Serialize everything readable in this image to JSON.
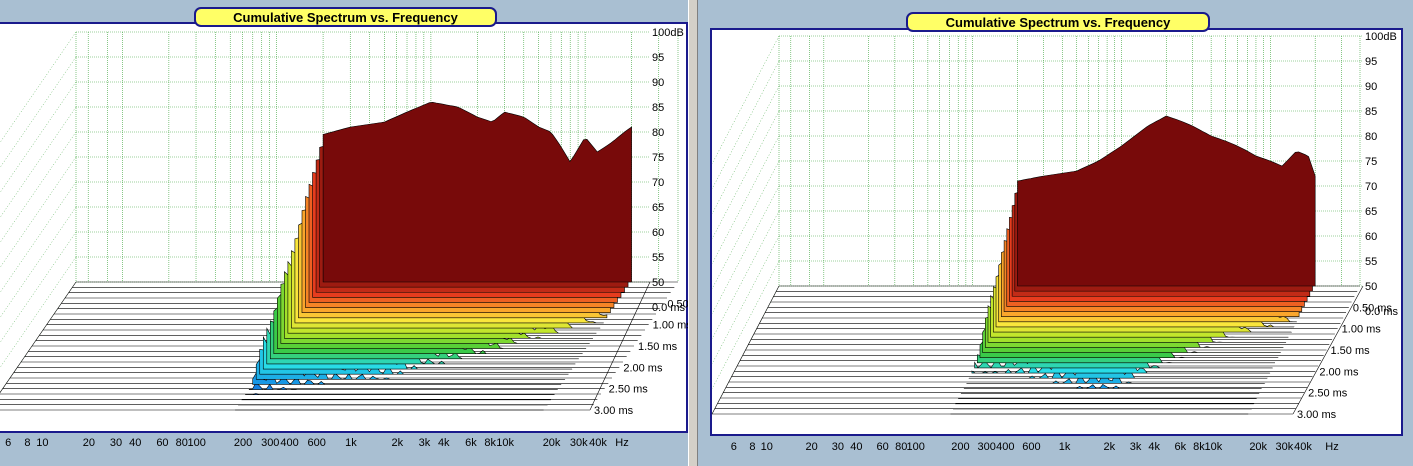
{
  "panels": [
    {
      "title": "Cumulative Spectrum vs. Frequency",
      "chart_data": {
        "type": "area",
        "variant": "cumulative-spectral-decay-waterfall",
        "title": "Cumulative Spectrum vs. Frequency",
        "x_scale": "log",
        "x_unit": "Hz",
        "x_tick_labels": [
          "6",
          "8",
          "10",
          "20",
          "30",
          "40",
          "60",
          "80",
          "100",
          "200",
          "300",
          "400",
          "600",
          "1k",
          "2k",
          "3k",
          "4k",
          "6k",
          "8k",
          "10k",
          "20k",
          "30k",
          "40k"
        ],
        "y_unit": "dB",
        "y_tick_labels": [
          "100dB",
          "95",
          "90",
          "85",
          "80",
          "75",
          "70",
          "65",
          "60",
          "55",
          "50",
          "0.0 ms"
        ],
        "ylim": [
          50,
          100
        ],
        "z_tick_labels": [
          "0.50 ms",
          "1.00 ms",
          "1.50 ms",
          "2.00 ms",
          "2.50 ms",
          "3.00 ms"
        ],
        "z_label_first": "0.0 ms",
        "zlim_ms": [
          0,
          3.0
        ],
        "grid": true,
        "series": [
          {
            "time_ms": 0.0,
            "freqs_hz": [
              200,
              300,
              500,
              700,
              1000,
              1500,
              2000,
              2500,
              3000,
              4000,
              5000,
              6000,
              7000,
              8000,
              10000,
              12000,
              15000,
              18000,
              20000
            ],
            "levels_db": [
              79.5,
              81,
              82,
              84,
              86,
              85,
              83,
              82,
              84,
              83,
              81,
              80,
              77,
              74,
              79,
              76,
              78,
              80,
              81
            ]
          },
          {
            "time_ms": 0.6,
            "freqs_hz": [
              200,
              300,
              500,
              700,
              1000,
              1500,
              2000,
              2500,
              3000,
              4000,
              5000,
              6000,
              7000,
              8000,
              10000,
              12000,
              15000,
              18000,
              20000
            ],
            "levels_db": [
              72,
              71,
              70,
              69,
              69,
              68,
              68,
              67,
              66,
              66,
              65,
              64,
              62,
              60,
              62,
              60,
              58,
              56,
              55
            ]
          },
          {
            "time_ms": 1.2,
            "freqs_hz": [
              200,
              300,
              500,
              700,
              1000,
              1500,
              2000,
              2500,
              3000,
              4000,
              5000,
              6000,
              7000,
              8000,
              10000,
              12000,
              15000,
              18000,
              20000
            ],
            "levels_db": [
              64,
              63,
              62,
              61,
              61,
              60,
              58,
              57,
              57,
              56,
              56,
              55,
              54,
              53,
              54,
              52,
              51,
              50,
              50
            ]
          }
        ]
      },
      "x_axis_labels": [
        "6",
        "8",
        "10",
        "20",
        "30",
        "40",
        "60",
        "80",
        "100",
        "200",
        "300",
        "400",
        "600",
        "1k",
        "2k",
        "3k",
        "4k",
        "6k",
        "8k",
        "10k",
        "20k",
        "30k",
        "40k",
        "Hz"
      ]
    },
    {
      "title": "Cumulative Spectrum vs. Frequency",
      "chart_data": {
        "type": "area",
        "variant": "cumulative-spectral-decay-waterfall",
        "title": "Cumulative Spectrum vs. Frequency",
        "x_scale": "log",
        "x_unit": "Hz",
        "x_tick_labels": [
          "6",
          "8",
          "10",
          "20",
          "30",
          "40",
          "60",
          "80",
          "100",
          "200",
          "300",
          "400",
          "600",
          "1k",
          "2k",
          "3k",
          "4k",
          "6k",
          "8k",
          "10k",
          "20k",
          "30k",
          "40k"
        ],
        "y_unit": "dB",
        "y_tick_labels": [
          "100dB",
          "95",
          "90",
          "85",
          "80",
          "75",
          "70",
          "65",
          "60",
          "55",
          "50",
          "0.0 ms"
        ],
        "ylim": [
          50,
          100
        ],
        "z_tick_labels": [
          "0.50 ms",
          "1.00 ms",
          "1.50 ms",
          "2.00 ms",
          "2.50 ms",
          "3.00 ms"
        ],
        "z_label_first": "0.0 ms",
        "zlim_ms": [
          0,
          3.0
        ],
        "grid": true,
        "series": [
          {
            "time_ms": 0.0,
            "freqs_hz": [
              200,
              300,
              500,
              700,
              1000,
              1500,
              2000,
              2500,
              3000,
              4000,
              5000,
              6000,
              7000,
              8000,
              10000,
              12000,
              15000,
              18000,
              20000
            ],
            "levels_db": [
              71,
              72,
              73,
              75,
              78,
              82,
              84,
              83,
              82,
              80,
              79,
              78,
              77,
              76,
              75,
              74,
              77,
              76,
              72
            ]
          },
          {
            "time_ms": 0.6,
            "freqs_hz": [
              200,
              300,
              500,
              700,
              1000,
              1500,
              2000,
              2500,
              3000,
              4000,
              5000,
              6000,
              7000,
              8000,
              10000,
              12000,
              15000,
              18000,
              20000
            ],
            "levels_db": [
              64,
              64,
              65,
              66,
              68,
              70,
              71,
              69,
              68,
              66,
              64,
              63,
              62,
              61,
              60,
              58,
              56,
              55,
              54
            ]
          },
          {
            "time_ms": 1.2,
            "freqs_hz": [
              200,
              300,
              500,
              700,
              1000,
              1500,
              2000,
              2500,
              3000,
              4000,
              5000,
              6000,
              7000,
              8000,
              10000,
              12000,
              15000,
              18000,
              20000
            ],
            "levels_db": [
              58,
              58,
              59,
              60,
              61,
              62,
              62,
              60,
              58,
              56,
              55,
              54,
              53,
              52,
              51,
              50,
              50,
              50,
              50
            ]
          }
        ]
      },
      "x_axis_labels": [
        "6",
        "8",
        "10",
        "20",
        "30",
        "40",
        "60",
        "80",
        "100",
        "200",
        "300",
        "400",
        "600",
        "1k",
        "2k",
        "3k",
        "4k",
        "6k",
        "8k",
        "10k",
        "20k",
        "30k",
        "40k",
        "Hz"
      ]
    }
  ]
}
